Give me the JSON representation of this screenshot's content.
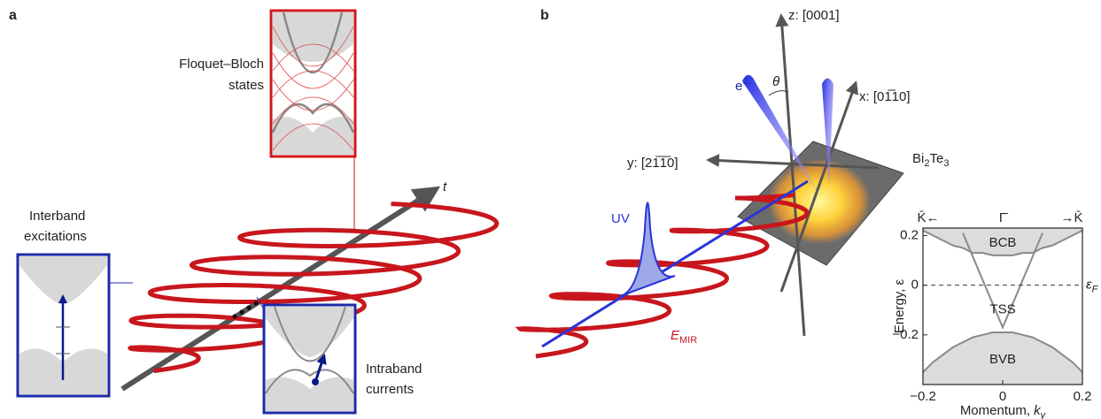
{
  "panel_a": {
    "label": "a",
    "time_axis": "t",
    "floquet_label": [
      "Floquet–Bloch",
      "states"
    ],
    "interband_label": [
      "Interband",
      "excitations"
    ],
    "intraband_label": [
      "Intraband",
      "currents"
    ]
  },
  "panel_b": {
    "label": "b",
    "z_axis": "z: [0001]",
    "x_axis": "x: [01̅10]",
    "y_axis": "y: [21̅1̅0]",
    "electron": "e⁻",
    "angle": "θ",
    "material": [
      "Bi",
      "2",
      "Te",
      "3"
    ],
    "uv": "UV",
    "field": {
      "main": "E",
      "sub": "MIR"
    }
  },
  "chart_data": {
    "type": "line",
    "top_labels": [
      "K̄←",
      "Γ̄",
      "→K̄"
    ],
    "xlabel": {
      "main": "Momentum, ",
      "var": "k",
      "sub": "y"
    },
    "ylabel": "Energy, ε",
    "x": [
      -0.2,
      -0.175,
      -0.15,
      -0.125,
      -0.1,
      -0.075,
      -0.05,
      -0.025,
      0,
      0.025,
      0.05,
      0.075,
      0.1,
      0.125,
      0.15,
      0.175,
      0.2
    ],
    "series": [
      {
        "color": "#8a8a8a",
        "fill": "above",
        "values": [
          0.22,
          0.2,
          0.18,
          0.16,
          0.15,
          0.13,
          0.13,
          0.12,
          0.12,
          0.12,
          0.13,
          0.13,
          0.15,
          0.16,
          0.18,
          0.2,
          0.22
        ]
      },
      {
        "color": "#8a8a8a",
        "fill": "none",
        "values": [
          null,
          null,
          null,
          null,
          0.21,
          0.115,
          0.02,
          -0.075,
          -0.17,
          -0.075,
          0.02,
          0.115,
          0.21,
          null,
          null,
          null,
          null
        ]
      },
      {
        "color": "#8a8a8a",
        "fill": "below",
        "values": [
          -0.35,
          -0.31,
          -0.28,
          -0.25,
          -0.23,
          -0.21,
          -0.2,
          -0.19,
          -0.19,
          -0.19,
          -0.2,
          -0.21,
          -0.23,
          -0.25,
          -0.28,
          -0.31,
          -0.35
        ]
      }
    ],
    "annotations": [
      "BCB",
      "TSS",
      "BVB"
    ],
    "fermi_level": {
      "value": 0,
      "main": "ε",
      "sub": "F"
    },
    "xlim": [
      -0.2,
      0.2
    ],
    "ylim": [
      -0.4,
      0.23
    ],
    "xticks": [
      {
        "value": -0.2,
        "label": "−0.2"
      },
      0,
      0.2
    ],
    "yticks": [
      0.2,
      0,
      {
        "value": -0.2,
        "label": "−0.2"
      }
    ]
  }
}
